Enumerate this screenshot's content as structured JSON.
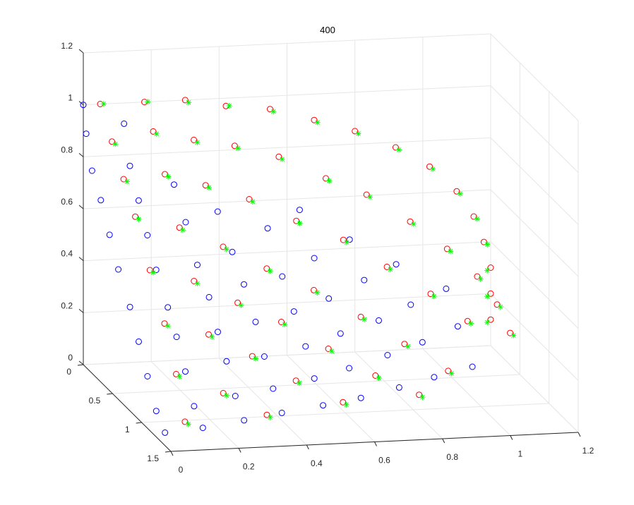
{
  "chart_data": {
    "type": "scatter",
    "title": "400",
    "view": "3d",
    "grid": true,
    "xlim": [
      0,
      1.2
    ],
    "ylim": [
      0,
      1.5
    ],
    "zlim": [
      0,
      1.2
    ],
    "x_ticks": [
      "0",
      "0.2",
      "0.4",
      "0.6",
      "0.8",
      "1",
      "1.2"
    ],
    "y_ticks": [
      "0",
      "0.5",
      "1",
      "1.5"
    ],
    "z_ticks": [
      "0",
      "0.2",
      "0.4",
      "0.6",
      "0.8",
      "1",
      "1.2"
    ],
    "colors": {
      "blue_circle": "#0000ff",
      "red_circle": "#ff0000",
      "green_star": "#00ff00"
    },
    "series": [
      {
        "marker": "circle",
        "color": "#0000ff",
        "points": [
          [
            0.0,
            0.0,
            1.0
          ],
          [
            0.0,
            0.05,
            0.9
          ],
          [
            0.12,
            0.0,
            0.92
          ],
          [
            0.0,
            0.15,
            0.78
          ],
          [
            0.12,
            0.1,
            0.78
          ],
          [
            0.0,
            0.3,
            0.7
          ],
          [
            0.12,
            0.25,
            0.68
          ],
          [
            0.25,
            0.1,
            0.7
          ],
          [
            0.0,
            0.45,
            0.6
          ],
          [
            0.12,
            0.4,
            0.58
          ],
          [
            0.25,
            0.3,
            0.6
          ],
          [
            0.37,
            0.15,
            0.6
          ],
          [
            0.0,
            0.6,
            0.5
          ],
          [
            0.12,
            0.55,
            0.48
          ],
          [
            0.25,
            0.5,
            0.48
          ],
          [
            0.37,
            0.4,
            0.5
          ],
          [
            0.5,
            0.25,
            0.55
          ],
          [
            0.62,
            0.1,
            0.58
          ],
          [
            0.0,
            0.8,
            0.4
          ],
          [
            0.12,
            0.75,
            0.38
          ],
          [
            0.25,
            0.7,
            0.4
          ],
          [
            0.37,
            0.6,
            0.42
          ],
          [
            0.5,
            0.5,
            0.42
          ],
          [
            0.62,
            0.35,
            0.45
          ],
          [
            0.75,
            0.2,
            0.48
          ],
          [
            0.0,
            0.95,
            0.3
          ],
          [
            0.12,
            0.9,
            0.3
          ],
          [
            0.25,
            0.85,
            0.3
          ],
          [
            0.37,
            0.8,
            0.32
          ],
          [
            0.5,
            0.7,
            0.33
          ],
          [
            0.62,
            0.6,
            0.35
          ],
          [
            0.75,
            0.45,
            0.38
          ],
          [
            0.87,
            0.3,
            0.4
          ],
          [
            0.0,
            1.1,
            0.2
          ],
          [
            0.12,
            1.05,
            0.2
          ],
          [
            0.25,
            1.0,
            0.22
          ],
          [
            0.37,
            0.95,
            0.22
          ],
          [
            0.5,
            0.9,
            0.24
          ],
          [
            0.62,
            0.8,
            0.26
          ],
          [
            0.75,
            0.7,
            0.28
          ],
          [
            0.87,
            0.55,
            0.3
          ],
          [
            1.0,
            0.4,
            0.32
          ],
          [
            0.0,
            1.25,
            0.1
          ],
          [
            0.12,
            1.2,
            0.1
          ],
          [
            0.25,
            1.15,
            0.12
          ],
          [
            0.37,
            1.1,
            0.13
          ],
          [
            0.5,
            1.05,
            0.15
          ],
          [
            0.62,
            0.95,
            0.16
          ],
          [
            0.75,
            0.85,
            0.18
          ],
          [
            0.87,
            0.75,
            0.2
          ],
          [
            1.0,
            0.6,
            0.22
          ],
          [
            0.0,
            1.4,
            0.05
          ],
          [
            0.12,
            1.35,
            0.05
          ],
          [
            0.25,
            1.3,
            0.06
          ],
          [
            0.37,
            1.25,
            0.07
          ],
          [
            0.5,
            1.2,
            0.08
          ],
          [
            0.62,
            1.15,
            0.09
          ],
          [
            0.75,
            1.05,
            0.1
          ],
          [
            0.87,
            0.95,
            0.11
          ],
          [
            1.0,
            0.85,
            0.12
          ]
        ]
      },
      {
        "marker": "circle",
        "color": "#ff0000",
        "points": [
          [
            0.05,
            0.0,
            1.0
          ],
          [
            0.18,
            0.0,
            1.0
          ],
          [
            0.3,
            0.0,
            1.0
          ],
          [
            0.42,
            0.0,
            0.97
          ],
          [
            0.55,
            0.0,
            0.95
          ],
          [
            0.68,
            0.0,
            0.9
          ],
          [
            0.8,
            0.0,
            0.85
          ],
          [
            0.92,
            0.0,
            0.78
          ],
          [
            1.02,
            0.0,
            0.7
          ],
          [
            1.1,
            0.0,
            0.6
          ],
          [
            1.15,
            0.0,
            0.5
          ],
          [
            1.18,
            0.0,
            0.4
          ],
          [
            1.2,
            0.0,
            0.3
          ],
          [
            1.2,
            0.0,
            0.2
          ],
          [
            1.2,
            0.0,
            0.1
          ],
          [
            0.05,
            0.2,
            0.9
          ],
          [
            0.18,
            0.15,
            0.92
          ],
          [
            0.3,
            0.15,
            0.88
          ],
          [
            0.42,
            0.15,
            0.85
          ],
          [
            0.55,
            0.15,
            0.8
          ],
          [
            0.68,
            0.2,
            0.72
          ],
          [
            0.8,
            0.2,
            0.65
          ],
          [
            0.92,
            0.25,
            0.55
          ],
          [
            1.02,
            0.3,
            0.45
          ],
          [
            1.1,
            0.35,
            0.35
          ],
          [
            1.15,
            0.4,
            0.25
          ],
          [
            1.18,
            0.45,
            0.15
          ],
          [
            0.05,
            0.4,
            0.8
          ],
          [
            0.18,
            0.35,
            0.8
          ],
          [
            0.3,
            0.35,
            0.75
          ],
          [
            0.42,
            0.4,
            0.7
          ],
          [
            0.55,
            0.45,
            0.62
          ],
          [
            0.68,
            0.5,
            0.55
          ],
          [
            0.8,
            0.55,
            0.45
          ],
          [
            0.92,
            0.6,
            0.35
          ],
          [
            1.02,
            0.65,
            0.25
          ],
          [
            0.05,
            0.6,
            0.7
          ],
          [
            0.18,
            0.6,
            0.65
          ],
          [
            0.3,
            0.65,
            0.58
          ],
          [
            0.42,
            0.7,
            0.5
          ],
          [
            0.55,
            0.75,
            0.42
          ],
          [
            0.68,
            0.8,
            0.32
          ],
          [
            0.8,
            0.85,
            0.22
          ],
          [
            0.92,
            0.9,
            0.12
          ],
          [
            0.05,
            0.85,
            0.55
          ],
          [
            0.18,
            0.85,
            0.5
          ],
          [
            0.3,
            0.9,
            0.42
          ],
          [
            0.42,
            0.95,
            0.35
          ],
          [
            0.55,
            1.0,
            0.25
          ],
          [
            0.68,
            1.05,
            0.15
          ],
          [
            0.8,
            1.1,
            0.08
          ],
          [
            0.05,
            1.1,
            0.4
          ],
          [
            0.18,
            1.1,
            0.35
          ],
          [
            0.3,
            1.15,
            0.27
          ],
          [
            0.42,
            1.2,
            0.18
          ],
          [
            0.55,
            1.25,
            0.1
          ],
          [
            0.05,
            1.3,
            0.25
          ],
          [
            0.18,
            1.35,
            0.18
          ],
          [
            0.3,
            1.4,
            0.1
          ],
          [
            0.05,
            1.45,
            0.1
          ]
        ]
      },
      {
        "marker": "star",
        "color": "#00ff00",
        "points": [
          [
            0.06,
            0.0,
            1.0
          ],
          [
            0.19,
            0.0,
            1.0
          ],
          [
            0.31,
            0.0,
            0.99
          ],
          [
            0.43,
            0.0,
            0.97
          ],
          [
            0.56,
            0.0,
            0.94
          ],
          [
            0.69,
            0.0,
            0.89
          ],
          [
            0.81,
            0.0,
            0.84
          ],
          [
            0.93,
            0.0,
            0.77
          ],
          [
            1.03,
            0.0,
            0.69
          ],
          [
            1.11,
            0.0,
            0.59
          ],
          [
            1.16,
            0.0,
            0.49
          ],
          [
            1.19,
            0.0,
            0.39
          ],
          [
            1.19,
            0.0,
            0.29
          ],
          [
            1.19,
            0.0,
            0.19
          ],
          [
            1.19,
            0.0,
            0.09
          ],
          [
            0.06,
            0.2,
            0.89
          ],
          [
            0.19,
            0.15,
            0.91
          ],
          [
            0.31,
            0.15,
            0.87
          ],
          [
            0.43,
            0.15,
            0.84
          ],
          [
            0.56,
            0.15,
            0.79
          ],
          [
            0.69,
            0.2,
            0.71
          ],
          [
            0.81,
            0.2,
            0.64
          ],
          [
            0.93,
            0.25,
            0.54
          ],
          [
            1.03,
            0.3,
            0.44
          ],
          [
            1.11,
            0.35,
            0.34
          ],
          [
            1.16,
            0.4,
            0.24
          ],
          [
            1.19,
            0.45,
            0.14
          ],
          [
            0.06,
            0.4,
            0.79
          ],
          [
            0.19,
            0.35,
            0.79
          ],
          [
            0.31,
            0.35,
            0.74
          ],
          [
            0.43,
            0.4,
            0.69
          ],
          [
            0.56,
            0.45,
            0.61
          ],
          [
            0.69,
            0.5,
            0.54
          ],
          [
            0.81,
            0.55,
            0.44
          ],
          [
            0.93,
            0.6,
            0.34
          ],
          [
            1.03,
            0.65,
            0.24
          ],
          [
            0.06,
            0.6,
            0.69
          ],
          [
            0.19,
            0.6,
            0.64
          ],
          [
            0.31,
            0.65,
            0.57
          ],
          [
            0.43,
            0.7,
            0.49
          ],
          [
            0.56,
            0.75,
            0.41
          ],
          [
            0.69,
            0.8,
            0.31
          ],
          [
            0.81,
            0.85,
            0.21
          ],
          [
            0.93,
            0.9,
            0.11
          ],
          [
            0.06,
            0.85,
            0.54
          ],
          [
            0.19,
            0.85,
            0.49
          ],
          [
            0.31,
            0.9,
            0.41
          ],
          [
            0.43,
            0.95,
            0.34
          ],
          [
            0.56,
            1.0,
            0.24
          ],
          [
            0.69,
            1.05,
            0.14
          ],
          [
            0.81,
            1.1,
            0.07
          ],
          [
            0.06,
            1.1,
            0.39
          ],
          [
            0.19,
            1.1,
            0.34
          ],
          [
            0.31,
            1.15,
            0.26
          ],
          [
            0.43,
            1.2,
            0.17
          ],
          [
            0.56,
            1.25,
            0.09
          ],
          [
            0.06,
            1.3,
            0.24
          ],
          [
            0.19,
            1.35,
            0.17
          ],
          [
            0.31,
            1.4,
            0.09
          ],
          [
            0.06,
            1.45,
            0.09
          ]
        ]
      }
    ]
  }
}
